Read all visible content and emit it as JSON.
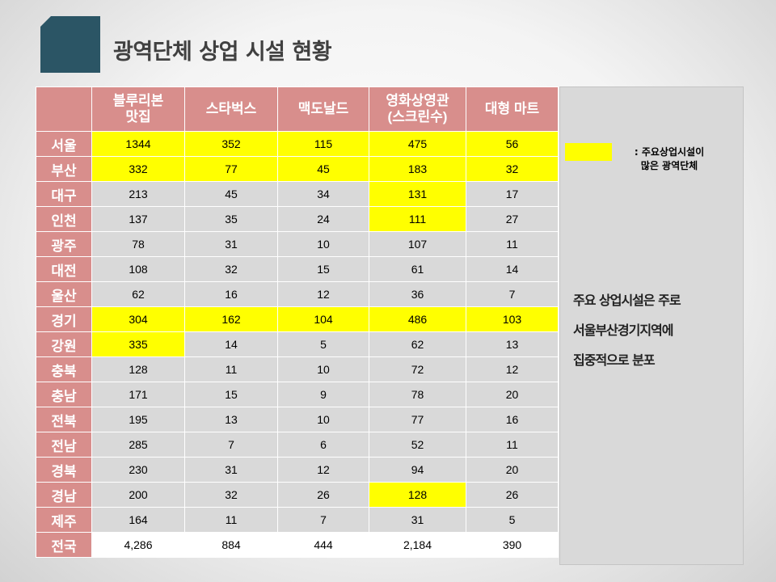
{
  "slide": {
    "title": "광역단체 상업 시설 현황"
  },
  "table": {
    "columns": [
      "블루리본\n맛집",
      "스타벅스",
      "맥도날드",
      "영화상영관\n(스크린수)",
      "대형 마트"
    ],
    "rows": [
      {
        "region": "서울",
        "values": [
          "1344",
          "352",
          "115",
          "475",
          "56"
        ],
        "hl": [
          "y",
          "y",
          "y",
          "y",
          "y"
        ]
      },
      {
        "region": "부산",
        "values": [
          "332",
          "77",
          "45",
          "183",
          "32"
        ],
        "hl": [
          "y",
          "y",
          "y",
          "y",
          "y"
        ]
      },
      {
        "region": "대구",
        "values": [
          "213",
          "45",
          "34",
          "131",
          "17"
        ],
        "hl": [
          "g",
          "g",
          "g",
          "y",
          "g"
        ]
      },
      {
        "region": "인천",
        "values": [
          "137",
          "35",
          "24",
          "111",
          "27"
        ],
        "hl": [
          "g",
          "g",
          "g",
          "y",
          "g"
        ]
      },
      {
        "region": "광주",
        "values": [
          "78",
          "31",
          "10",
          "107",
          "11"
        ],
        "hl": [
          "g",
          "g",
          "g",
          "g",
          "g"
        ]
      },
      {
        "region": "대전",
        "values": [
          "108",
          "32",
          "15",
          "61",
          "14"
        ],
        "hl": [
          "g",
          "g",
          "g",
          "g",
          "g"
        ]
      },
      {
        "region": "울산",
        "values": [
          "62",
          "16",
          "12",
          "36",
          "7"
        ],
        "hl": [
          "g",
          "g",
          "g",
          "g",
          "g"
        ]
      },
      {
        "region": "경기",
        "values": [
          "304",
          "162",
          "104",
          "486",
          "103"
        ],
        "hl": [
          "y",
          "y",
          "y",
          "y",
          "y"
        ]
      },
      {
        "region": "강원",
        "values": [
          "335",
          "14",
          "5",
          "62",
          "13"
        ],
        "hl": [
          "y",
          "g",
          "g",
          "g",
          "g"
        ]
      },
      {
        "region": "충북",
        "values": [
          "128",
          "11",
          "10",
          "72",
          "12"
        ],
        "hl": [
          "g",
          "g",
          "g",
          "g",
          "g"
        ]
      },
      {
        "region": "충남",
        "values": [
          "171",
          "15",
          "9",
          "78",
          "20"
        ],
        "hl": [
          "g",
          "g",
          "g",
          "g",
          "g"
        ]
      },
      {
        "region": "전북",
        "values": [
          "195",
          "13",
          "10",
          "77",
          "16"
        ],
        "hl": [
          "g",
          "g",
          "g",
          "g",
          "g"
        ]
      },
      {
        "region": "전남",
        "values": [
          "285",
          "7",
          "6",
          "52",
          "11"
        ],
        "hl": [
          "g",
          "g",
          "g",
          "g",
          "g"
        ]
      },
      {
        "region": "경북",
        "values": [
          "230",
          "31",
          "12",
          "94",
          "20"
        ],
        "hl": [
          "g",
          "g",
          "g",
          "g",
          "g"
        ]
      },
      {
        "region": "경남",
        "values": [
          "200",
          "32",
          "26",
          "128",
          "26"
        ],
        "hl": [
          "g",
          "g",
          "g",
          "y",
          "g"
        ]
      },
      {
        "region": "제주",
        "values": [
          "164",
          "11",
          "7",
          "31",
          "5"
        ],
        "hl": [
          "g",
          "g",
          "g",
          "g",
          "g"
        ]
      },
      {
        "region": "전국",
        "values": [
          "4,286",
          "884",
          "444",
          "2,184",
          "390"
        ],
        "hl": [
          "w",
          "w",
          "w",
          "w",
          "w"
        ]
      }
    ]
  },
  "legend": {
    "text": ": 주요상업시설이\n많은 광역단체",
    "color": "#ffff00"
  },
  "note": {
    "text": "주요 상업시설은 주로\n서울부산경기지역에\n집중적으로 분포"
  },
  "colors": {
    "header": "#d88e8c",
    "highlight": "#ffff00",
    "cell": "#d9d9d9",
    "title_square": "#2b5565"
  }
}
